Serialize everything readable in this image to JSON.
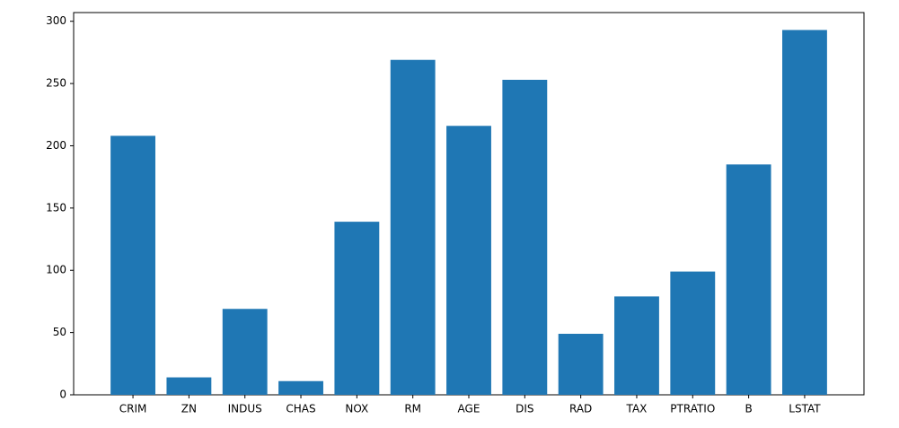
{
  "chart_data": {
    "type": "bar",
    "categories": [
      "CRIM",
      "ZN",
      "INDUS",
      "CHAS",
      "NOX",
      "RM",
      "AGE",
      "DIS",
      "RAD",
      "TAX",
      "PTRATIO",
      "B",
      "LSTAT"
    ],
    "values": [
      208,
      14,
      69,
      11,
      139,
      269,
      216,
      253,
      49,
      79,
      99,
      185,
      293
    ],
    "color": "#1f77b4",
    "ylim": [
      0,
      307
    ],
    "yticks": [
      0,
      50,
      100,
      150,
      200,
      250,
      300
    ],
    "grid": false
  }
}
